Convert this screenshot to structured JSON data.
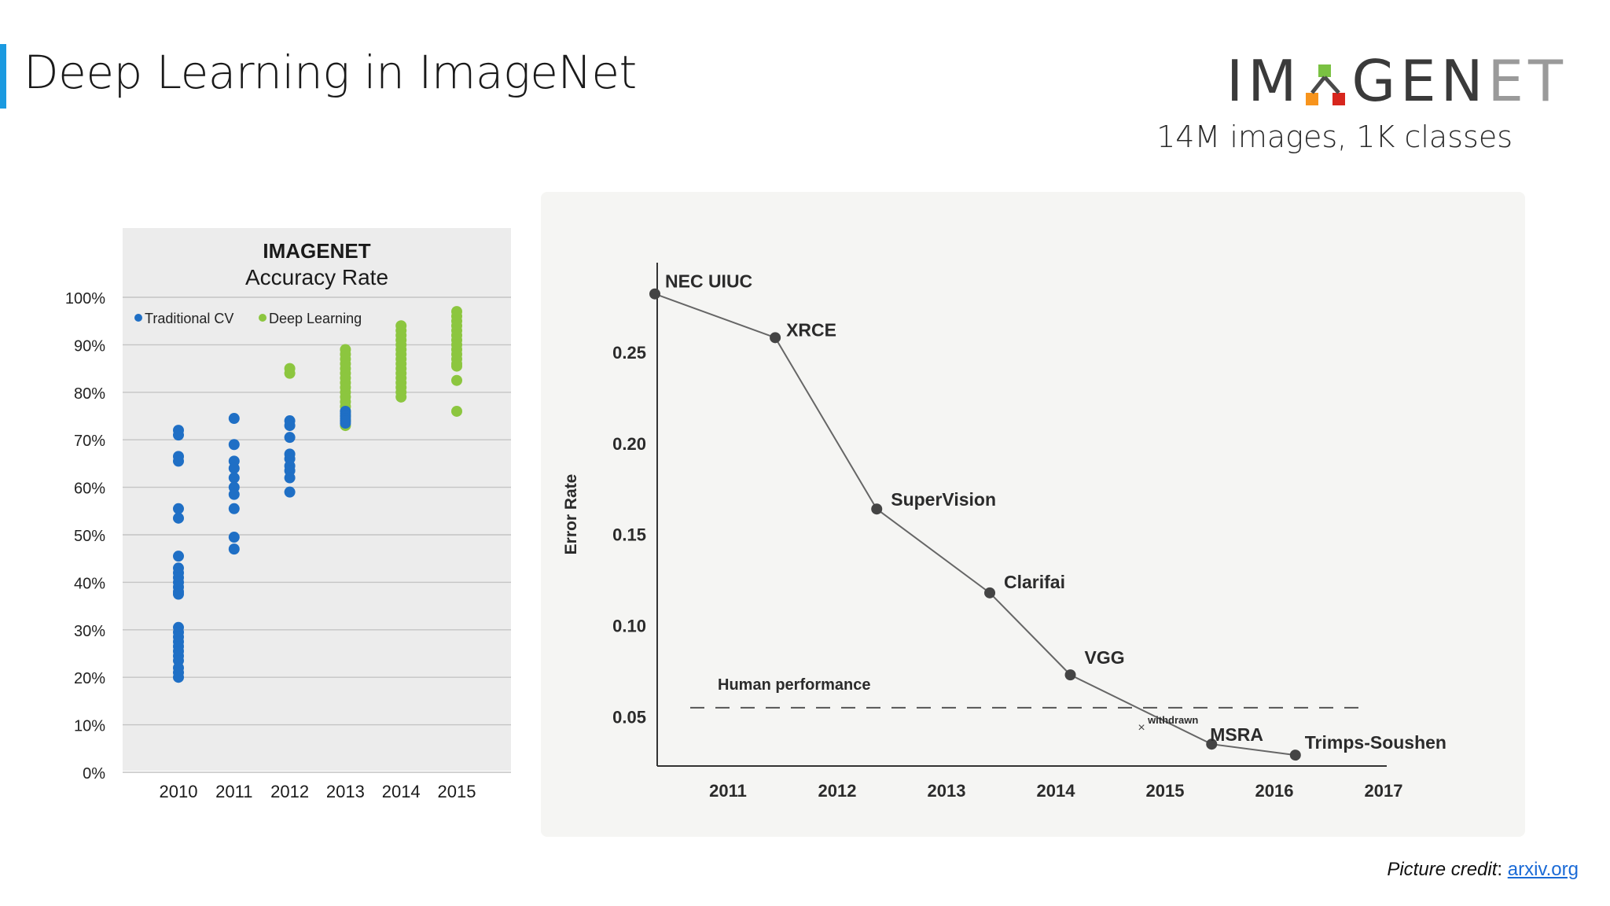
{
  "slide": {
    "title": "Deep Learning in ImageNet",
    "logo_text": "IM GENET",
    "subtitle": "14M images, 1K classes",
    "credit_caption": "Picture credit",
    "credit_sep": ":",
    "credit_link": "arxiv.org",
    "accent_color": "#1b9ae0"
  },
  "chart_data": [
    {
      "type": "scatter",
      "title": "IMAGENET",
      "subtitle": "Accuracy Rate",
      "y_tick_labels": [
        "0%",
        "10%",
        "20%",
        "30%",
        "40%",
        "50%",
        "60%",
        "70%",
        "80%",
        "90%",
        "100%"
      ],
      "ylim": [
        0,
        100
      ],
      "categories": [
        "2010",
        "2011",
        "2012",
        "2013",
        "2014",
        "2015"
      ],
      "grid": true,
      "legend_position": "top-left",
      "series": [
        {
          "name": "Traditional CV",
          "color": "#1f6fc5",
          "points": [
            [
              "2010",
              72
            ],
            [
              "2010",
              71
            ],
            [
              "2010",
              66.5
            ],
            [
              "2010",
              65.5
            ],
            [
              "2010",
              55.5
            ],
            [
              "2010",
              53.5
            ],
            [
              "2010",
              45.5
            ],
            [
              "2010",
              43
            ],
            [
              "2010",
              42
            ],
            [
              "2010",
              41
            ],
            [
              "2010",
              40
            ],
            [
              "2010",
              39
            ],
            [
              "2010",
              38
            ],
            [
              "2010",
              37.5
            ],
            [
              "2010",
              30.5
            ],
            [
              "2010",
              29.5
            ],
            [
              "2010",
              28.5
            ],
            [
              "2010",
              27.5
            ],
            [
              "2010",
              26.5
            ],
            [
              "2010",
              25.5
            ],
            [
              "2010",
              24.5
            ],
            [
              "2010",
              23.5
            ],
            [
              "2010",
              22
            ],
            [
              "2010",
              21
            ],
            [
              "2010",
              20
            ],
            [
              "2011",
              74.5
            ],
            [
              "2011",
              69
            ],
            [
              "2011",
              65.5
            ],
            [
              "2011",
              64
            ],
            [
              "2011",
              62
            ],
            [
              "2011",
              60
            ],
            [
              "2011",
              58.5
            ],
            [
              "2011",
              55.5
            ],
            [
              "2011",
              49.5
            ],
            [
              "2011",
              47
            ],
            [
              "2012",
              74
            ],
            [
              "2012",
              73
            ],
            [
              "2012",
              70.5
            ],
            [
              "2012",
              67
            ],
            [
              "2012",
              66
            ],
            [
              "2012",
              64.5
            ],
            [
              "2012",
              63.5
            ],
            [
              "2012",
              62
            ],
            [
              "2012",
              59
            ],
            [
              "2013",
              76
            ],
            [
              "2013",
              75.5
            ],
            [
              "2013",
              75
            ],
            [
              "2013",
              74.5
            ],
            [
              "2013",
              74
            ],
            [
              "2013",
              73.5
            ]
          ]
        },
        {
          "name": "Deep Learning",
          "color": "#8cc63f",
          "points": [
            [
              "2012",
              85
            ],
            [
              "2012",
              84
            ],
            [
              "2013",
              89
            ],
            [
              "2013",
              88
            ],
            [
              "2013",
              87
            ],
            [
              "2013",
              86
            ],
            [
              "2013",
              85
            ],
            [
              "2013",
              84
            ],
            [
              "2013",
              83
            ],
            [
              "2013",
              82
            ],
            [
              "2013",
              81
            ],
            [
              "2013",
              80
            ],
            [
              "2013",
              79
            ],
            [
              "2013",
              78
            ],
            [
              "2013",
              77
            ],
            [
              "2013",
              76
            ],
            [
              "2013",
              75
            ],
            [
              "2013",
              74
            ],
            [
              "2013",
              73
            ],
            [
              "2014",
              94
            ],
            [
              "2014",
              93
            ],
            [
              "2014",
              92
            ],
            [
              "2014",
              91
            ],
            [
              "2014",
              90
            ],
            [
              "2014",
              89
            ],
            [
              "2014",
              88
            ],
            [
              "2014",
              87
            ],
            [
              "2014",
              86
            ],
            [
              "2014",
              85
            ],
            [
              "2014",
              84
            ],
            [
              "2014",
              83
            ],
            [
              "2014",
              82
            ],
            [
              "2014",
              81
            ],
            [
              "2014",
              80
            ],
            [
              "2014",
              79
            ],
            [
              "2015",
              97
            ],
            [
              "2015",
              96
            ],
            [
              "2015",
              95
            ],
            [
              "2015",
              94
            ],
            [
              "2015",
              93
            ],
            [
              "2015",
              92
            ],
            [
              "2015",
              91
            ],
            [
              "2015",
              90
            ],
            [
              "2015",
              89
            ],
            [
              "2015",
              88
            ],
            [
              "2015",
              87
            ],
            [
              "2015",
              86
            ],
            [
              "2015",
              85.5
            ],
            [
              "2015",
              82.5
            ],
            [
              "2015",
              76
            ]
          ]
        }
      ]
    },
    {
      "type": "line",
      "ylabel": "Error Rate",
      "x_tick_labels": [
        "2011",
        "2012",
        "2013",
        "2014",
        "2015",
        "2016",
        "2017"
      ],
      "y_tick_labels": [
        "0.05",
        "0.10",
        "0.15",
        "0.20",
        "0.25"
      ],
      "xlim": [
        2010.6,
        2017.3
      ],
      "ylim": [
        0.023,
        0.3
      ],
      "grid": false,
      "series": [
        {
          "color": "#666666",
          "points": [
            {
              "x": 2010.6,
              "y": 0.282,
              "label": "NEC UIUC"
            },
            {
              "x": 2011.75,
              "y": 0.258,
              "label": "XRCE"
            },
            {
              "x": 2012.72,
              "y": 0.164,
              "label": "SuperVision"
            },
            {
              "x": 2013.8,
              "y": 0.118,
              "label": "Clarifai"
            },
            {
              "x": 2014.57,
              "y": 0.073,
              "label": "VGG"
            },
            {
              "x": 2015.92,
              "y": 0.035,
              "label": "MSRA"
            },
            {
              "x": 2016.72,
              "y": 0.029,
              "label": "Trimps-Soushen"
            }
          ]
        }
      ],
      "reference_line": {
        "y": 0.055,
        "label": "Human performance",
        "style": "dashed"
      },
      "annotation": {
        "x": 2015.25,
        "y": 0.042,
        "label": "withdrawn",
        "marker": "×"
      }
    }
  ]
}
